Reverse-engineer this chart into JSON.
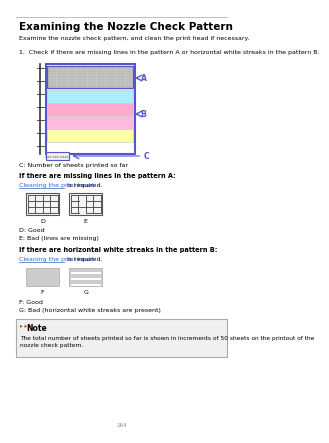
{
  "title": "Examining the Nozzle Check Pattern",
  "subtitle": "Examine the nozzle check pattern, and clean the print head if necessary.",
  "step1": "1.  Check if there are missing lines in the pattern A or horizontal white streaks in the pattern B.",
  "label_A": "A",
  "label_B": "B",
  "label_C": "C",
  "label_C_text": "C: Number of sheets printed so far",
  "section1_bold": "If there are missing lines in the pattern A:",
  "link1": "Cleaning the print head",
  "link1_suffix": " is required.",
  "label_D": "D",
  "label_E": "E",
  "label_D_text": "D: Good",
  "label_E_text": "E: Bad (lines are missing)",
  "section2_bold": "If there are horizontal white streaks in the pattern B:",
  "link2": "Cleaning the print head",
  "link2_suffix": " is required.",
  "label_F": "F",
  "label_G": "G",
  "label_F_text": "F: Good",
  "label_G_text": "G: Bad (horizontal white streaks are present)",
  "note_icon": "Note",
  "note_text": "The total number of sheets printed so far is shown in increments of 50 sheets on the printout of the\nnozzle check pattern.",
  "bg_color": "#ffffff",
  "border_color": "#5555cc",
  "pattern_A_color": "#d0d0d0",
  "pattern_cyan": "#aaeeff",
  "pattern_magenta": "#ffaacc",
  "pattern_magenta2": "#ffbbdd",
  "pattern_yellow": "#ffffaa",
  "note_bg": "#f0f0f0",
  "note_border": "#aaaaaa",
  "link_color": "#3366cc",
  "text_color": "#000000",
  "title_color": "#000000"
}
